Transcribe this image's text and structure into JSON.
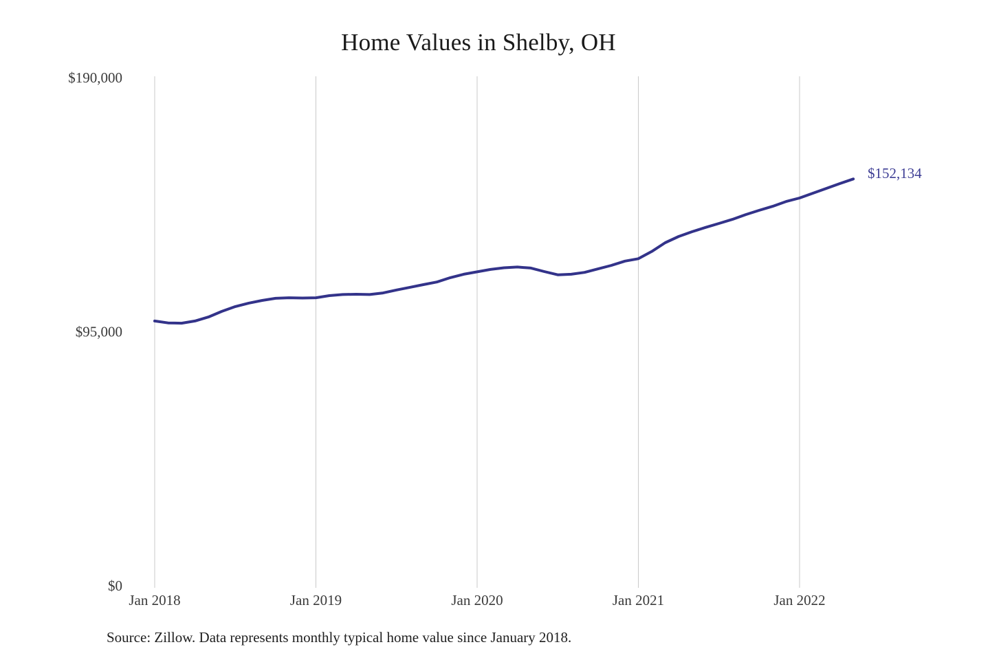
{
  "page": {
    "background": "#ffffff"
  },
  "chart_data": {
    "type": "line",
    "title": "Home Values in Shelby, OH",
    "source_note": "Source: Zillow. Data represents monthly typical home value since January 2018.",
    "end_label": "$152,134",
    "legend": "none",
    "grid": "vertical-only",
    "colors": {
      "line": "#33338a",
      "end_label": "#3d3d94",
      "gridline": "#c9c9c9",
      "axis_text": "#3a3a3a",
      "title_text": "#1a1a1a"
    },
    "ylim": [
      0,
      190000
    ],
    "y_ticks": [
      {
        "value": 0,
        "label": "$0"
      },
      {
        "value": 95000,
        "label": "$95,000"
      },
      {
        "value": 190000,
        "label": "$190,000"
      }
    ],
    "x_ticks": [
      "Jan 2018",
      "Jan 2019",
      "Jan 2020",
      "Jan 2021",
      "Jan 2022"
    ],
    "x": [
      "Jan 2018",
      "Feb 2018",
      "Mar 2018",
      "Apr 2018",
      "May 2018",
      "Jun 2018",
      "Jul 2018",
      "Aug 2018",
      "Sep 2018",
      "Oct 2018",
      "Nov 2018",
      "Dec 2018",
      "Jan 2019",
      "Feb 2019",
      "Mar 2019",
      "Apr 2019",
      "May 2019",
      "Jun 2019",
      "Jul 2019",
      "Aug 2019",
      "Sep 2019",
      "Oct 2019",
      "Nov 2019",
      "Dec 2019",
      "Jan 2020",
      "Feb 2020",
      "Mar 2020",
      "Apr 2020",
      "May 2020",
      "Jun 2020",
      "Jul 2020",
      "Aug 2020",
      "Sep 2020",
      "Oct 2020",
      "Nov 2020",
      "Dec 2020",
      "Jan 2021",
      "Feb 2021",
      "Mar 2021",
      "Apr 2021",
      "May 2021",
      "Jun 2021",
      "Jul 2021",
      "Aug 2021",
      "Sep 2021",
      "Oct 2021",
      "Nov 2021",
      "Dec 2021",
      "Jan 2022",
      "Feb 2022",
      "Mar 2022",
      "Apr 2022",
      "May 2022"
    ],
    "series": [
      {
        "name": "Typical home value",
        "values": [
          99000,
          98300,
          98200,
          99000,
          100500,
          102600,
          104400,
          105700,
          106700,
          107500,
          107700,
          107600,
          107700,
          108500,
          108900,
          109000,
          108900,
          109500,
          110600,
          111600,
          112600,
          113600,
          115200,
          116500,
          117400,
          118300,
          118900,
          119200,
          118800,
          117500,
          116300,
          116500,
          117200,
          118500,
          119800,
          121400,
          122300,
          125000,
          128300,
          130600,
          132400,
          134000,
          135500,
          137000,
          138800,
          140400,
          141900,
          143700,
          145000,
          146800,
          148600,
          150400,
          152134
        ]
      }
    ]
  }
}
